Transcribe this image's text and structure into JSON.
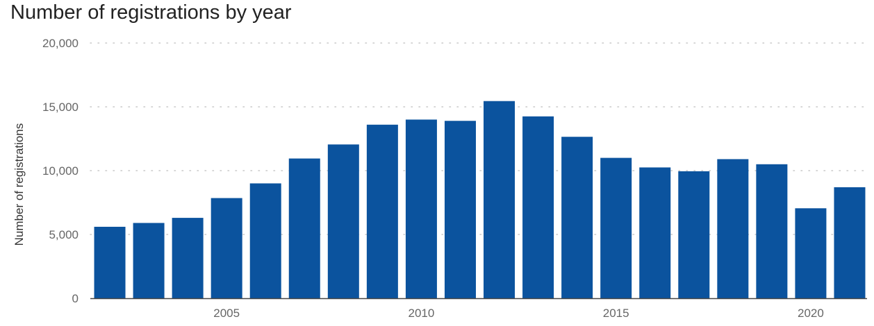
{
  "chart_data": {
    "type": "bar",
    "title": "Number of registrations by year",
    "xlabel": "",
    "ylabel": "Number of registrations",
    "x": [
      2002,
      2003,
      2004,
      2005,
      2006,
      2007,
      2008,
      2009,
      2010,
      2011,
      2012,
      2013,
      2014,
      2015,
      2016,
      2017,
      2018,
      2019,
      2020,
      2021
    ],
    "values": [
      5600,
      5900,
      6300,
      7850,
      9000,
      10950,
      12050,
      13600,
      14000,
      13900,
      15450,
      14250,
      12650,
      11000,
      10250,
      9950,
      10900,
      10500,
      7050,
      8700
    ],
    "ylim": [
      0,
      20000
    ],
    "yticks": [
      0,
      5000,
      10000,
      15000,
      20000
    ],
    "ytick_labels": [
      "0",
      "5,000",
      "10,000",
      "15,000",
      "20,000"
    ],
    "xticks": [
      2005,
      2010,
      2015,
      2020
    ],
    "xtick_labels": [
      "2005",
      "2010",
      "2015",
      "2020"
    ],
    "grid": true,
    "bar_color": "#0b539e",
    "grid_color": "#c8c8c8",
    "axis_color": "#444444"
  }
}
